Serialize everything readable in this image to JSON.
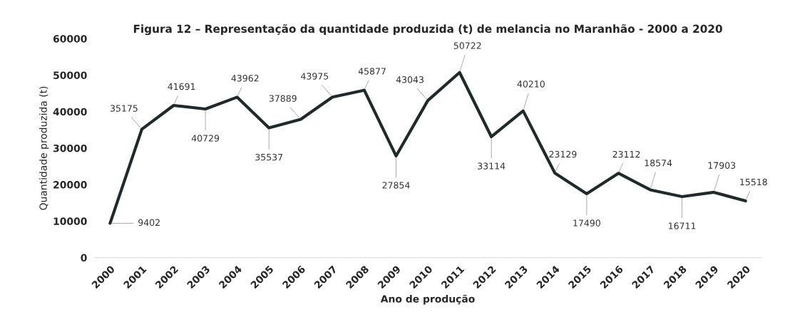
{
  "chart_data": {
    "type": "line",
    "title": "Figura 12 – Representação da quantidade produzida (t) de melancia no Maranhão - 2000 a 2020",
    "xlabel": "Ano de produção",
    "ylabel": "Quantidade produzida (t)",
    "categories": [
      "2000",
      "2001",
      "2002",
      "2003",
      "2004",
      "2005",
      "2006",
      "2007",
      "2008",
      "2009",
      "2010",
      "2011",
      "2012",
      "2013",
      "2014",
      "2015",
      "2016",
      "2017",
      "2018",
      "2019",
      "2020"
    ],
    "series": [
      {
        "color": "#1f2a2a",
        "values": [
          9402,
          35175,
          41691,
          40729,
          43962,
          35537,
          37889,
          43975,
          45877,
          27854,
          43043,
          50722,
          33114,
          40210,
          23129,
          17490,
          23112,
          18574,
          16711,
          17903,
          15518
        ]
      }
    ],
    "ylim": [
      0,
      60000
    ],
    "yticks": [
      0,
      10000,
      20000,
      30000,
      40000,
      50000,
      60000
    ],
    "data_labels": true,
    "grid": false,
    "legend": false,
    "marker": "none",
    "line_style": "solid"
  }
}
